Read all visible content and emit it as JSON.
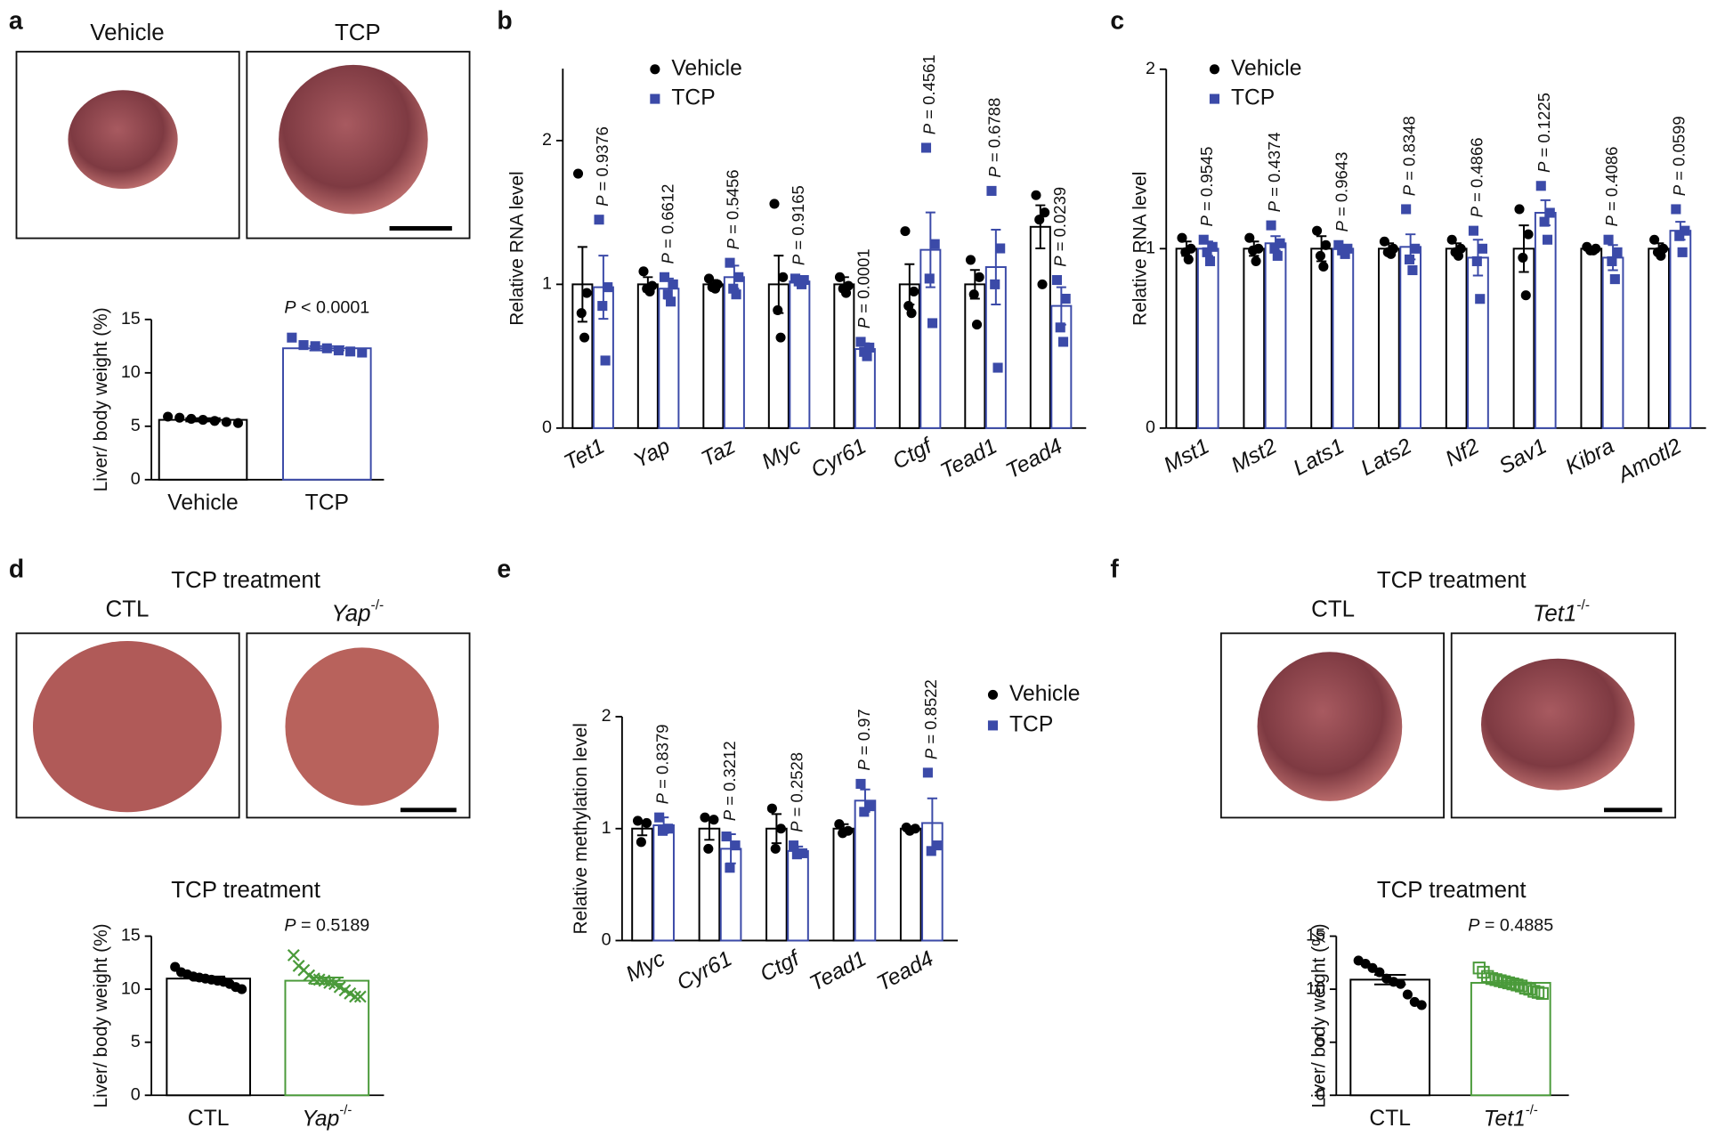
{
  "figure": {
    "panels": [
      {
        "letter": "a",
        "photo_labels": [
          "Vehicle",
          "TCP"
        ]
      },
      {
        "letter": "b"
      },
      {
        "letter": "c"
      },
      {
        "letter": "d",
        "heading": "TCP treatment",
        "photo_labels": [
          "CTL",
          "Yap-/-"
        ]
      },
      {
        "letter": "e"
      },
      {
        "letter": "f",
        "heading": "TCP treatment",
        "photo_labels": [
          "CTL",
          "Tet1-/-"
        ]
      }
    ]
  },
  "chart_data": [
    {
      "type": "bar",
      "ylabel": "Liver/ body weight (%)",
      "categories": [
        "Vehicle",
        "TCP"
      ],
      "values": [
        5.6,
        12.3
      ],
      "errors": [
        0.15,
        0.2
      ],
      "colors": [
        "#000000",
        "#3b4aa8"
      ],
      "markers": [
        "circle",
        "square"
      ],
      "points": [
        [
          5.9,
          5.8,
          5.7,
          5.6,
          5.5,
          5.4,
          5.3
        ],
        [
          13.3,
          12.6,
          12.5,
          12.3,
          12.1,
          12.0,
          11.9
        ]
      ],
      "annotation": "P < 0.0001",
      "ylim": [
        0,
        15
      ],
      "yticks": [
        0,
        5,
        10,
        15
      ]
    },
    {
      "type": "bar",
      "ylabel": "Relative RNA level",
      "legend": "upper left",
      "categories": [
        "Tet1",
        "Yap",
        "Taz",
        "Myc",
        "Cyr61",
        "Ctgf",
        "Tead1",
        "Tead4"
      ],
      "series": [
        {
          "name": "Vehicle",
          "color": "#000000",
          "marker": "circle",
          "values": [
            1,
            1,
            1,
            1,
            1,
            1,
            1,
            1.4
          ],
          "errors": [
            0.26,
            0.05,
            0.03,
            0.2,
            0.05,
            0.14,
            0.1,
            0.15
          ],
          "points": [
            [
              1.77,
              0.94,
              0.8,
              0.63
            ],
            [
              1.09,
              0.99,
              0.97,
              0.95
            ],
            [
              1.04,
              1.0,
              0.98,
              0.97
            ],
            [
              1.56,
              1.05,
              0.82,
              0.63
            ],
            [
              1.05,
              0.99,
              0.97,
              0.94
            ],
            [
              1.37,
              0.95,
              0.85,
              0.8
            ],
            [
              1.17,
              1.05,
              0.93,
              0.72
            ],
            [
              1.62,
              1.5,
              1.45,
              1.0
            ]
          ]
        },
        {
          "name": "TCP",
          "color": "#3b4aa8",
          "marker": "square",
          "values": [
            0.98,
            0.97,
            1.05,
            1.02,
            0.55,
            1.24,
            1.12,
            0.85
          ],
          "errors": [
            0.22,
            0.07,
            0.08,
            0.02,
            0.04,
            0.26,
            0.26,
            0.13
          ],
          "points": [
            [
              1.45,
              0.98,
              0.85,
              0.47
            ],
            [
              1.05,
              1.0,
              0.93,
              0.88
            ],
            [
              1.15,
              1.05,
              0.97,
              0.93
            ],
            [
              1.04,
              1.03,
              1.02,
              1.0
            ],
            [
              0.6,
              0.56,
              0.53,
              0.5
            ],
            [
              1.95,
              1.28,
              1.04,
              0.73
            ],
            [
              1.65,
              1.25,
              1.0,
              0.42
            ],
            [
              1.03,
              0.9,
              0.7,
              0.6
            ]
          ]
        }
      ],
      "annotations": [
        "P = 0.9376",
        "P = 0.6612",
        "P = 0.5456",
        "P = 0.9165",
        "P = 0.0001",
        "P = 0.4561",
        "P = 0.6788",
        "P = 0.0239"
      ],
      "ylim": [
        0,
        2.5
      ],
      "yticks": [
        0,
        1,
        2
      ]
    },
    {
      "type": "bar",
      "ylabel": "Relative RNA level",
      "legend": "upper left",
      "categories": [
        "Mst1",
        "Mst2",
        "Lats1",
        "Lats2",
        "Nf2",
        "Sav1",
        "Kibra",
        "Amotl2"
      ],
      "series": [
        {
          "name": "Vehicle",
          "color": "#000000",
          "marker": "circle",
          "values": [
            1,
            1,
            1,
            1,
            1,
            1,
            1,
            1
          ],
          "errors": [
            0.04,
            0.04,
            0.07,
            0.03,
            0.03,
            0.13,
            0.01,
            0.03
          ],
          "points": [
            [
              1.06,
              1.0,
              0.98,
              0.94
            ],
            [
              1.06,
              1.0,
              0.99,
              0.93
            ],
            [
              1.1,
              1.02,
              0.96,
              0.9
            ],
            [
              1.04,
              1.0,
              0.98,
              0.97
            ],
            [
              1.05,
              1.0,
              0.98,
              0.96
            ],
            [
              1.22,
              1.08,
              0.95,
              0.74
            ],
            [
              1.01,
              1.0,
              0.99,
              0.99
            ],
            [
              1.05,
              1.0,
              0.98,
              0.96
            ]
          ]
        },
        {
          "name": "TCP",
          "color": "#3b4aa8",
          "marker": "square",
          "values": [
            1.0,
            1.03,
            1.0,
            1.01,
            0.95,
            1.2,
            0.95,
            1.1
          ],
          "errors": [
            0.04,
            0.04,
            0.02,
            0.07,
            0.1,
            0.07,
            0.07,
            0.05
          ],
          "points": [
            [
              1.05,
              1.01,
              0.98,
              0.93
            ],
            [
              1.13,
              1.03,
              1.0,
              0.96
            ],
            [
              1.02,
              1.0,
              0.99,
              0.97
            ],
            [
              1.22,
              1.0,
              0.94,
              0.88
            ],
            [
              1.1,
              1.0,
              0.93,
              0.72
            ],
            [
              1.35,
              1.2,
              1.15,
              1.05
            ],
            [
              1.05,
              0.98,
              0.93,
              0.83
            ],
            [
              1.22,
              1.1,
              1.07,
              0.98
            ]
          ]
        }
      ],
      "annotations": [
        "P = 0.9545",
        "P = 0.4374",
        "P = 0.9643",
        "P = 0.8348",
        "P = 0.4866",
        "P = 0.1225",
        "P = 0.4086",
        "P = 0.0599"
      ],
      "ylim": [
        0,
        2
      ],
      "yticks": [
        0,
        1,
        2
      ]
    },
    {
      "type": "bar",
      "title": "TCP treatment",
      "ylabel": "Liver/ body weight (%)",
      "categories": [
        "CTL",
        "Yap-/-"
      ],
      "values": [
        11.0,
        10.8
      ],
      "errors": [
        0.2,
        0.3
      ],
      "colors": [
        "#000000",
        "#4a9a3a"
      ],
      "markers": [
        "circle",
        "cross"
      ],
      "points": [
        [
          12.1,
          11.6,
          11.4,
          11.2,
          11.1,
          11.0,
          10.9,
          10.8,
          10.7,
          10.5,
          10.2,
          10.0
        ],
        [
          13.2,
          12.2,
          11.8,
          11.3,
          11.0,
          10.9,
          10.8,
          10.6,
          10.5,
          10.2,
          9.9,
          9.6,
          9.3,
          9.3
        ]
      ],
      "annotation": "P = 0.5189",
      "ylim": [
        0,
        15
      ],
      "yticks": [
        0,
        5,
        10,
        15
      ]
    },
    {
      "type": "bar",
      "ylabel": "Relative methylation level",
      "legend": "upper right",
      "categories": [
        "Myc",
        "Cyr61",
        "Ctgf",
        "Tead1",
        "Tead4"
      ],
      "series": [
        {
          "name": "Vehicle",
          "color": "#000000",
          "marker": "circle",
          "values": [
            1,
            1,
            1,
            1,
            1
          ],
          "errors": [
            0.06,
            0.1,
            0.13,
            0.04,
            0.02
          ],
          "points": [
            [
              1.07,
              1.05,
              0.88
            ],
            [
              1.1,
              1.08,
              0.82
            ],
            [
              1.18,
              1.0,
              0.82
            ],
            [
              1.04,
              0.98,
              0.96
            ],
            [
              1.01,
              1.0,
              0.98
            ]
          ]
        },
        {
          "name": "TCP",
          "color": "#3b4aa8",
          "marker": "square",
          "values": [
            1.03,
            0.82,
            0.8,
            1.25,
            1.05
          ],
          "errors": [
            0.07,
            0.13,
            0.04,
            0.1,
            0.22
          ],
          "points": [
            [
              1.1,
              1.0,
              0.98
            ],
            [
              0.93,
              0.85,
              0.65
            ],
            [
              0.85,
              0.78,
              0.77
            ],
            [
              1.4,
              1.2,
              1.15
            ],
            [
              1.5,
              0.85,
              0.8
            ]
          ]
        }
      ],
      "annotations": [
        "P = 0.8379",
        "P = 0.3212",
        "P = 0.2528",
        "P = 0.97",
        "P = 0.8522"
      ],
      "ylim": [
        0,
        2
      ],
      "yticks": [
        0,
        1,
        2
      ]
    },
    {
      "type": "bar",
      "title": "TCP treatment",
      "ylabel": "Liver/ body weight (%)",
      "categories": [
        "CTL",
        "Tet1-/-"
      ],
      "values": [
        10.9,
        10.6
      ],
      "errors": [
        0.45,
        0.18
      ],
      "colors": [
        "#000000",
        "#4a9a3a"
      ],
      "markers": [
        "circle",
        "open-square"
      ],
      "points": [
        [
          12.7,
          12.4,
          12.0,
          11.6,
          11.0,
          10.7,
          10.5,
          9.5,
          8.8,
          8.5
        ],
        [
          12.0,
          11.6,
          11.2,
          11.0,
          10.9,
          10.8,
          10.7,
          10.6,
          10.5,
          10.4,
          10.3,
          10.1,
          10.0,
          9.8,
          9.7,
          9.6
        ]
      ],
      "annotation": "P = 0.4885",
      "ylim": [
        0,
        15
      ],
      "yticks": [
        0,
        5,
        10,
        15
      ]
    }
  ]
}
